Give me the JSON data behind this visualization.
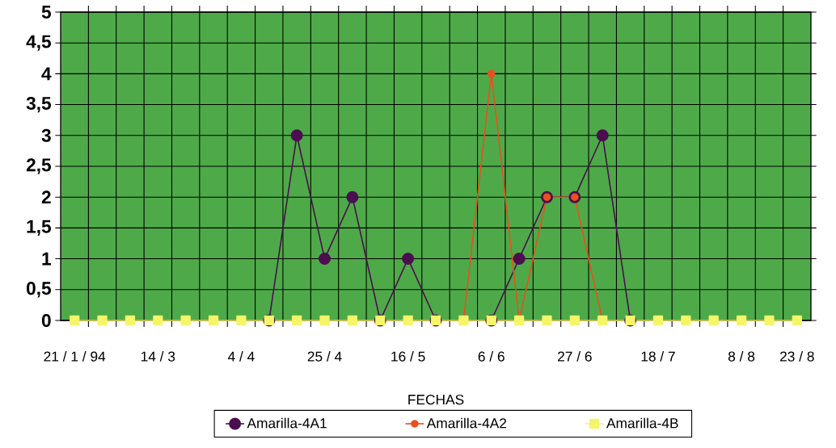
{
  "chart_data": {
    "type": "line",
    "xlabel": "FECHAS",
    "categories": [
      "21 / 1 / 94",
      null,
      null,
      "14 / 3",
      null,
      null,
      "4 / 4",
      null,
      null,
      "25 / 4",
      null,
      null,
      "16 / 5",
      null,
      null,
      "6 / 6",
      null,
      null,
      "27 / 6",
      null,
      null,
      "18 / 7",
      null,
      null,
      "8 / 8",
      null,
      "23 / 8"
    ],
    "series": [
      {
        "name": "Amarilla-4A1",
        "color": "#4b0f50",
        "marker": "circle",
        "values": [
          null,
          null,
          null,
          null,
          null,
          null,
          null,
          0,
          3,
          1,
          2,
          0,
          1,
          0,
          null,
          0,
          1,
          2,
          2,
          3,
          0,
          null,
          null,
          null,
          null,
          null,
          null
        ]
      },
      {
        "name": "Amarilla-4A2",
        "color": "#e8501e",
        "marker": "circle",
        "values": [
          null,
          null,
          null,
          null,
          null,
          null,
          null,
          null,
          null,
          null,
          null,
          null,
          null,
          null,
          0,
          4,
          0,
          2,
          2,
          0,
          null,
          null,
          null,
          null,
          null,
          null,
          null
        ]
      },
      {
        "name": "Amarilla-4B",
        "color": "#f5f56a",
        "marker": "square",
        "values": [
          0,
          0,
          0,
          0,
          0,
          0,
          0,
          0,
          0,
          0,
          0,
          0,
          0,
          0,
          0,
          0,
          0,
          0,
          0,
          0,
          0,
          0,
          0,
          0,
          0,
          0,
          0
        ]
      }
    ],
    "ylim": [
      0,
      5
    ],
    "yticks": [
      0,
      {
        "value": 0.5,
        "label": "0,5"
      },
      1,
      {
        "value": 1.5,
        "label": "1,5"
      },
      2,
      {
        "value": 2.5,
        "label": "2,5"
      },
      3,
      {
        "value": 3.5,
        "label": "3,5"
      },
      4,
      {
        "value": 4.5,
        "label": "4,5"
      },
      5
    ],
    "grid": true,
    "legend": "bottom"
  }
}
